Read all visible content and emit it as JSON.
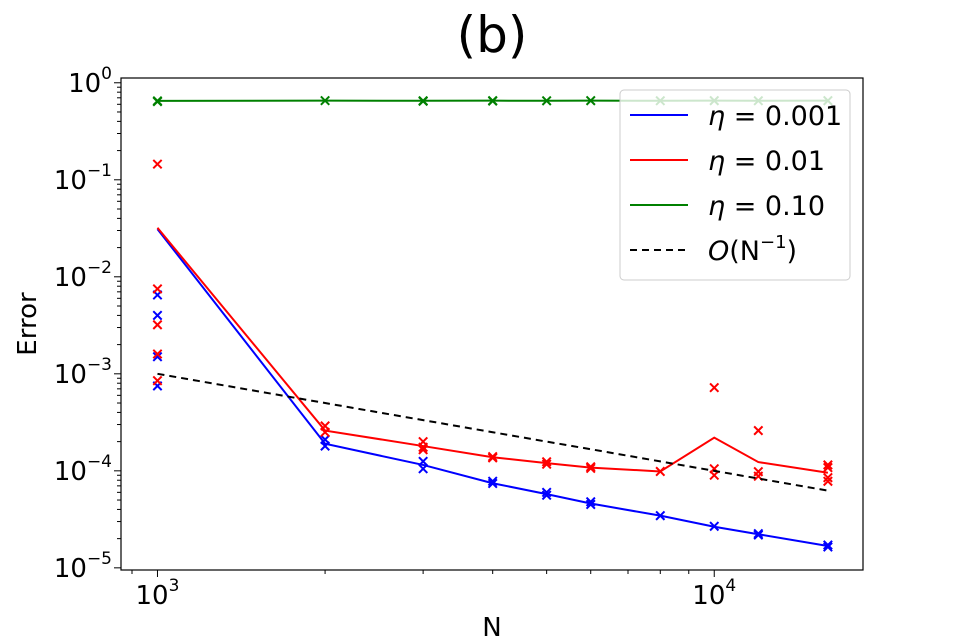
{
  "chart_data": {
    "type": "line",
    "title": "(b)",
    "xlabel": "N",
    "ylabel": "Error",
    "xscale": "log",
    "yscale": "log",
    "xlim": [
      860,
      18500
    ],
    "ylim": [
      9.5e-06,
      1.12
    ],
    "x_ticks": [
      {
        "value": 1000,
        "base": "10",
        "exp": "3"
      },
      {
        "value": 10000,
        "base": "10",
        "exp": "4"
      }
    ],
    "y_ticks": [
      {
        "value": 1,
        "base": "10",
        "exp": "0"
      },
      {
        "value": 0.1,
        "base": "10",
        "exp": "−1"
      },
      {
        "value": 0.01,
        "base": "10",
        "exp": "−2"
      },
      {
        "value": 0.001,
        "base": "10",
        "exp": "−3"
      },
      {
        "value": 0.0001,
        "base": "10",
        "exp": "−4"
      },
      {
        "value": 1e-05,
        "base": "10",
        "exp": "−5"
      }
    ],
    "x": [
      1000,
      2000,
      3000,
      4000,
      5000,
      6000,
      8000,
      10000,
      12000,
      16000
    ],
    "series": [
      {
        "name": "η = 0.001",
        "color": "#0000ff",
        "style": "solid",
        "values": [
          0.031,
          0.00019,
          0.000115,
          7.45e-05,
          5.75e-05,
          4.6e-05,
          3.45e-05,
          2.65e-05,
          2.22e-05,
          1.68e-05
        ],
        "scatter": [
          [
            1000,
            0.0065
          ],
          [
            1000,
            0.004
          ],
          [
            1000,
            0.0015
          ],
          [
            1000,
            0.00075
          ],
          [
            2000,
            0.00021
          ],
          [
            2000,
            0.00018
          ],
          [
            3000,
            0.000125
          ],
          [
            3000,
            0.000105
          ],
          [
            4000,
            7.8e-05
          ],
          [
            4000,
            7.4e-05
          ],
          [
            5000,
            6e-05
          ],
          [
            5000,
            5.6e-05
          ],
          [
            6000,
            4.8e-05
          ],
          [
            6000,
            4.5e-05
          ],
          [
            8000,
            3.45e-05
          ],
          [
            10000,
            2.68e-05
          ],
          [
            12000,
            2.25e-05
          ],
          [
            12000,
            2.18e-05
          ],
          [
            16000,
            1.72e-05
          ],
          [
            16000,
            1.64e-05
          ]
        ]
      },
      {
        "name": "η = 0.01",
        "color": "#ff0000",
        "style": "solid",
        "values": [
          0.032,
          0.00026,
          0.00018,
          0.000138,
          0.00012,
          0.000108,
          9.85e-05,
          0.00022,
          0.000123,
          9.55e-05
        ],
        "scatter": [
          [
            1000,
            0.145
          ],
          [
            1000,
            0.0075
          ],
          [
            1000,
            0.0032
          ],
          [
            1000,
            0.0016
          ],
          [
            1000,
            0.00085
          ],
          [
            2000,
            0.00029
          ],
          [
            2000,
            0.00025
          ],
          [
            3000,
            0.0002
          ],
          [
            3000,
            0.000175
          ],
          [
            3000,
            0.000165
          ],
          [
            4000,
            0.00014
          ],
          [
            4000,
            0.000136
          ],
          [
            5000,
            0.000124
          ],
          [
            5000,
            0.000117
          ],
          [
            6000,
            0.00011
          ],
          [
            6000,
            0.000106
          ],
          [
            8000,
            9.85e-05
          ],
          [
            10000,
            0.00072
          ],
          [
            10000,
            0.000105
          ],
          [
            10000,
            9e-05
          ],
          [
            12000,
            0.00026
          ],
          [
            12000,
            9.8e-05
          ],
          [
            12000,
            8.8e-05
          ],
          [
            16000,
            0.000115
          ],
          [
            16000,
            0.000108
          ],
          [
            16000,
            8.5e-05
          ],
          [
            16000,
            7.8e-05
          ]
        ]
      },
      {
        "name": "η = 0.10",
        "color": "#008000",
        "style": "solid",
        "values": [
          0.65,
          0.655,
          0.652,
          0.654,
          0.652,
          0.654,
          0.653,
          0.654,
          0.653,
          0.654
        ],
        "scatter": [
          [
            1000,
            0.65
          ],
          [
            1000,
            0.64
          ],
          [
            2000,
            0.655
          ],
          [
            3000,
            0.652
          ],
          [
            3000,
            0.645
          ],
          [
            4000,
            0.654
          ],
          [
            4000,
            0.648
          ],
          [
            5000,
            0.652
          ],
          [
            6000,
            0.654
          ],
          [
            8000,
            0.653
          ],
          [
            10000,
            0.654
          ],
          [
            12000,
            0.653
          ],
          [
            16000,
            0.654
          ]
        ]
      },
      {
        "name": "O(N⁻¹)",
        "color": "#000000",
        "style": "dashed",
        "values": [
          0.001,
          0.0005,
          0.000333,
          0.00025,
          0.0002,
          0.000167,
          0.000125,
          0.0001,
          8.33e-05,
          6.25e-05
        ],
        "scatter": []
      }
    ],
    "legend": {
      "location": "top-right",
      "entries": [
        {
          "symbol": "η",
          "rest": " = 0.001",
          "color": "#0000ff",
          "style": "solid"
        },
        {
          "symbol": "η",
          "rest": " = 0.01",
          "color": "#ff0000",
          "style": "solid"
        },
        {
          "symbol": "η",
          "rest": " = 0.10",
          "color": "#008000",
          "style": "solid"
        },
        {
          "symbol": "O",
          "rest": "(N",
          "sup": "−1",
          "close": ")",
          "color": "#000000",
          "style": "dashed"
        }
      ]
    }
  }
}
